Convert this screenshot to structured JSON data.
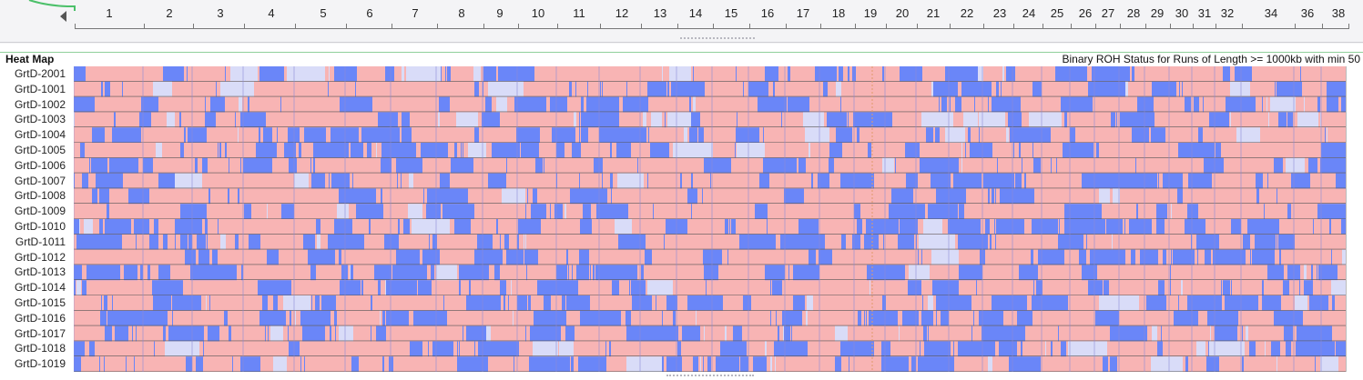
{
  "ruler": {
    "chromosomes": [
      "1",
      "2",
      "3",
      "4",
      "5",
      "6",
      "7",
      "8",
      "9",
      "10",
      "11",
      "12",
      "13",
      "14",
      "15",
      "16",
      "17",
      "18",
      "19",
      "20",
      "21",
      "22",
      "23",
      "24",
      "25",
      "26",
      "27",
      "28",
      "29",
      "30",
      "31",
      "32",
      "34",
      "36",
      "38"
    ]
  },
  "panel": {
    "title": "Heat Map",
    "subtitle": "Binary ROH Status for Runs of Length >= 1000kb with min 50"
  },
  "samples": [
    "GrtD-2001",
    "GrtD-1001",
    "GrtD-1002",
    "GrtD-1003",
    "GrtD-1004",
    "GrtD-1005",
    "GrtD-1006",
    "GrtD-1007",
    "GrtD-1008",
    "GrtD-1009",
    "GrtD-1010",
    "GrtD-1011",
    "GrtD-1012",
    "GrtD-1013",
    "GrtD-1014",
    "GrtD-1015",
    "GrtD-1016",
    "GrtD-1017",
    "GrtD-1018",
    "GrtD-1019"
  ],
  "colors": {
    "roh_present": "#6a86f8",
    "roh_absent": "#f8b4b4",
    "faint": "#d9dcf8",
    "marker": "#4cc06a"
  }
}
